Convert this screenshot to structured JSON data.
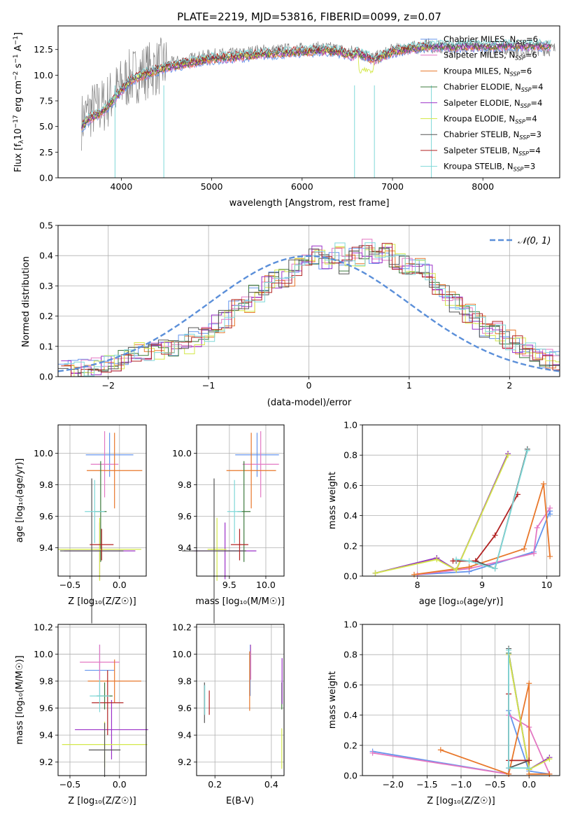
{
  "colors": {
    "Chabrier MILES": "#6495ed",
    "Salpeter MILES": "#e377c2",
    "Kroupa MILES": "#e8772a",
    "Chabrier ELODIE": "#3d7a3d",
    "Salpeter ELODIE": "#9b30c8",
    "Kroupa ELODIE": "#d4e84a",
    "Chabrier STELIB": "#555555",
    "Salpeter STELIB": "#b22222",
    "Kroupa STELIB": "#7fd8d8",
    "data": "#808080",
    "normal": "#5b8fd9"
  },
  "chart_data": [
    {
      "id": "spectrum",
      "type": "line",
      "title": "PLATE=2219, MJD=53816, FIBERID=0099, z=0.07",
      "xlabel": "wavelength [Angstrom, rest frame]",
      "ylabel_main": "Flux [f",
      "ylabel_sub": "λ",
      "ylabel_mid": "10",
      "ylabel_sup1": "−17",
      "ylabel_rest": " erg cm",
      "ylabel_sup2": "−2",
      "ylabel_s": " s",
      "ylabel_sup3": "−1",
      "ylabel_A": " A",
      "ylabel_sup4": "−1",
      "ylabel_end": "]",
      "xlim": [
        3300,
        8850
      ],
      "ylim": [
        0,
        14.8
      ],
      "xticks": [
        "4000",
        "5000",
        "6000",
        "7000",
        "8000"
      ],
      "xtick_values": [
        4000,
        5000,
        6000,
        7000,
        8000
      ],
      "yticks": [
        "0.0",
        "2.5",
        "5.0",
        "7.5",
        "10.0",
        "12.5"
      ],
      "ytick_values": [
        0,
        2.5,
        5,
        7.5,
        10,
        12.5
      ],
      "legend": [
        {
          "name": "Chabrier MILES",
          "nssp": "6"
        },
        {
          "name": "Salpeter MILES",
          "nssp": "6"
        },
        {
          "name": "Kroupa MILES",
          "nssp": "6"
        },
        {
          "name": "Chabrier ELODIE",
          "nssp": "4"
        },
        {
          "name": "Salpeter ELODIE",
          "nssp": "4"
        },
        {
          "name": "Kroupa ELODIE",
          "nssp": "4"
        },
        {
          "name": "Chabrier STELIB",
          "nssp": "3"
        },
        {
          "name": "Salpeter STELIB",
          "nssp": "4"
        },
        {
          "name": "Kroupa STELIB",
          "nssp": "3"
        }
      ],
      "legend_prefix": "N",
      "legend_sub": "SSP",
      "continuum_model": {
        "x": [
          3560,
          3650,
          3800,
          3950,
          4100,
          4300,
          4500,
          4700,
          5000,
          5300,
          5500,
          5800,
          6000,
          6200,
          6400,
          6500,
          6560,
          6600,
          6800,
          7000,
          7200,
          7400
        ],
        "y": [
          5.0,
          5.8,
          6.5,
          8.0,
          9.5,
          10.2,
          10.8,
          11.1,
          11.6,
          11.8,
          12.0,
          12.2,
          12.3,
          12.4,
          12.3,
          12.1,
          11.9,
          12.2,
          11.5,
          12.3,
          12.6,
          12.8
        ]
      },
      "continuum_data": {
        "x": [
          3560,
          3650,
          3800,
          3950,
          4100,
          4300,
          4500,
          4700,
          5000,
          5300,
          5500,
          5800,
          6000,
          6200,
          6400,
          6500,
          6600,
          6800,
          7000,
          7200,
          7400,
          7600,
          7800,
          8000,
          8200,
          8400,
          8600,
          8800
        ],
        "y": [
          5.5,
          6.5,
          7.0,
          8.5,
          9.8,
          10.5,
          11.0,
          11.4,
          11.9,
          12.0,
          12.3,
          12.4,
          12.5,
          12.6,
          12.5,
          12.2,
          12.3,
          11.6,
          12.4,
          12.6,
          12.9,
          12.5,
          12.8,
          12.6,
          12.7,
          12.4,
          12.6,
          12.5
        ]
      },
      "noise_amp": 1.3
    },
    {
      "id": "residuals",
      "type": "histogram",
      "xlabel": "(data-model)/error",
      "ylabel": "Normed distribution",
      "xlim": [
        -2.5,
        2.5
      ],
      "ylim": [
        0,
        0.5
      ],
      "xticks": [
        "−2",
        "−1",
        "0",
        "1",
        "2"
      ],
      "xtick_values": [
        -2,
        -1,
        0,
        1,
        2
      ],
      "yticks": [
        "0.0",
        "0.1",
        "0.2",
        "0.3",
        "0.4",
        "0.5"
      ],
      "ytick_values": [
        0,
        0.1,
        0.2,
        0.3,
        0.4,
        0.5
      ],
      "bin_width": 0.1,
      "legend_label": "𝒩(0, 1)",
      "base_values": [
        0.02,
        0.02,
        0.03,
        0.03,
        0.04,
        0.05,
        0.06,
        0.08,
        0.08,
        0.09,
        0.09,
        0.1,
        0.11,
        0.13,
        0.14,
        0.17,
        0.19,
        0.22,
        0.24,
        0.28,
        0.3,
        0.32,
        0.33,
        0.36,
        0.37,
        0.4,
        0.38,
        0.41,
        0.37,
        0.4,
        0.42,
        0.4,
        0.41,
        0.38,
        0.37,
        0.36,
        0.34,
        0.3,
        0.27,
        0.24,
        0.21,
        0.19,
        0.16,
        0.15,
        0.12,
        0.1,
        0.09,
        0.08,
        0.06,
        0.05,
        0.04,
        0.03,
        0.03,
        0.02
      ]
    },
    {
      "id": "age-vs-Z",
      "type": "errorbar",
      "xlabel": "Z [log₁₀(Z/Z☉)]",
      "ylabel": "age  [log₁₀(age/yr)]",
      "xlim": [
        -0.62,
        0.27
      ],
      "ylim": [
        9.22,
        10.18
      ],
      "xticks": [
        "−0.5",
        "0.0"
      ],
      "xtick_values": [
        -0.5,
        0.0
      ],
      "yticks": [
        "9.4",
        "9.6",
        "9.8",
        "10.0"
      ],
      "ytick_values": [
        9.4,
        9.6,
        9.8,
        10.0
      ],
      "points": [
        {
          "model": "Chabrier MILES",
          "x": -0.1,
          "xerr": 0.24,
          "y": 9.99,
          "yerr": 0.14
        },
        {
          "model": "Salpeter MILES",
          "x": -0.15,
          "xerr": 0.14,
          "y": 9.93,
          "yerr": 0.21
        },
        {
          "model": "Kroupa MILES",
          "x": -0.05,
          "xerr": 0.28,
          "y": 9.89,
          "yerr": 0.24
        },
        {
          "model": "Chabrier ELODIE",
          "x": -0.19,
          "xerr": 0.06,
          "y": 9.63,
          "yerr": 0.32
        },
        {
          "model": "Salpeter ELODIE",
          "x": -0.2,
          "xerr": 0.36,
          "y": 9.38,
          "yerr": 0.18
        },
        {
          "model": "Kroupa ELODIE",
          "x": -0.2,
          "xerr": 0.42,
          "y": 9.39,
          "yerr": 0.2
        },
        {
          "model": "Chabrier STELIB",
          "x": -0.28,
          "xerr": 0.32,
          "y": 9.38,
          "yerr": 0.46
        },
        {
          "model": "Salpeter STELIB",
          "x": -0.18,
          "xerr": 0.12,
          "y": 9.42,
          "yerr": 0.1
        },
        {
          "model": "Kroupa STELIB",
          "x": -0.25,
          "xerr": 0.1,
          "y": 9.63,
          "yerr": 0.2
        }
      ]
    },
    {
      "id": "age-vs-mass",
      "type": "errorbar",
      "xlabel": "mass [log₁₀(M/M☉)]",
      "ylabel": "",
      "xlim": [
        9.05,
        10.25
      ],
      "ylim": [
        9.22,
        10.18
      ],
      "xticks": [
        "9.5",
        "10.0"
      ],
      "xtick_values": [
        9.5,
        10.0
      ],
      "yticks": [
        "9.4",
        "9.6",
        "9.8",
        "10.0"
      ],
      "ytick_values": [
        9.4,
        9.6,
        9.8,
        10.0
      ],
      "points": [
        {
          "model": "Chabrier MILES",
          "x": 9.88,
          "xerr": 0.3,
          "y": 9.99,
          "yerr": 0.14
        },
        {
          "model": "Salpeter MILES",
          "x": 9.93,
          "xerr": 0.25,
          "y": 9.93,
          "yerr": 0.21
        },
        {
          "model": "Kroupa MILES",
          "x": 9.8,
          "xerr": 0.34,
          "y": 9.89,
          "yerr": 0.24
        },
        {
          "model": "Chabrier ELODIE",
          "x": 9.7,
          "xerr": 0.09,
          "y": 9.63,
          "yerr": 0.32
        },
        {
          "model": "Salpeter ELODIE",
          "x": 9.44,
          "xerr": 0.43,
          "y": 9.38,
          "yerr": 0.18
        },
        {
          "model": "Kroupa ELODIE",
          "x": 9.33,
          "xerr": 0.13,
          "y": 9.39,
          "yerr": 0.2
        },
        {
          "model": "Chabrier STELIB",
          "x": 9.29,
          "xerr": 0.44,
          "y": 9.38,
          "yerr": 0.46
        },
        {
          "model": "Salpeter STELIB",
          "x": 9.64,
          "xerr": 0.12,
          "y": 9.42,
          "yerr": 0.1
        },
        {
          "model": "Kroupa STELIB",
          "x": 9.57,
          "xerr": 0.1,
          "y": 9.63,
          "yerr": 0.2
        }
      ]
    },
    {
      "id": "weight-vs-age",
      "type": "line",
      "xlabel": "age  [log₁₀(age/yr)]",
      "ylabel": "mass weight",
      "xlim": [
        7.15,
        10.2
      ],
      "ylim": [
        0,
        1.0
      ],
      "xticks": [
        "8",
        "9",
        "10"
      ],
      "xtick_values": [
        8,
        9,
        10
      ],
      "yticks": [
        "0.0",
        "0.2",
        "0.4",
        "0.6",
        "0.8",
        "1.0"
      ],
      "ytick_values": [
        0,
        0.2,
        0.4,
        0.6,
        0.8,
        1.0
      ],
      "series": [
        {
          "model": "Chabrier MILES",
          "x": [
            8.0,
            8.8,
            9.8,
            10.05,
            10.05
          ],
          "y": [
            0.01,
            0.03,
            0.16,
            0.43,
            0.41
          ]
        },
        {
          "model": "Salpeter MILES",
          "x": [
            8.0,
            8.8,
            9.8,
            9.85,
            10.05
          ],
          "y": [
            0.01,
            0.05,
            0.15,
            0.32,
            0.45
          ]
        },
        {
          "model": "Kroupa MILES",
          "x": [
            7.95,
            8.8,
            9.65,
            9.95,
            10.05
          ],
          "y": [
            0.01,
            0.06,
            0.18,
            0.61,
            0.13
          ]
        },
        {
          "model": "Chabrier ELODIE",
          "x": [
            7.35,
            8.3,
            8.6,
            9.4
          ],
          "y": [
            0.02,
            0.12,
            0.04,
            0.81
          ]
        },
        {
          "model": "Salpeter ELODIE",
          "x": [
            7.35,
            8.3,
            8.6,
            9.4
          ],
          "y": [
            0.02,
            0.12,
            0.04,
            0.81
          ]
        },
        {
          "model": "Kroupa ELODIE",
          "x": [
            7.35,
            8.3,
            8.6,
            9.4
          ],
          "y": [
            0.02,
            0.11,
            0.04,
            0.8
          ]
        },
        {
          "model": "Chabrier STELIB",
          "x": [
            8.6,
            8.9,
            9.2,
            9.7
          ],
          "y": [
            0.1,
            0.1,
            0.05,
            0.84
          ]
        },
        {
          "model": "Salpeter STELIB",
          "x": [
            8.55,
            8.9,
            9.2,
            9.55
          ],
          "y": [
            0.1,
            0.1,
            0.27,
            0.54
          ]
        },
        {
          "model": "Kroupa STELIB",
          "x": [
            8.6,
            8.8,
            9.2,
            9.7
          ],
          "y": [
            0.11,
            0.1,
            0.05,
            0.83
          ]
        }
      ]
    },
    {
      "id": "mass-vs-Z",
      "type": "errorbar",
      "xlabel": "Z [log₁₀(Z/Z☉)]",
      "ylabel": "mass [log₁₀(M/M☉)]",
      "xlim": [
        -0.62,
        0.27
      ],
      "ylim": [
        9.1,
        10.22
      ],
      "xticks": [
        "−0.5",
        "0.0"
      ],
      "xtick_values": [
        -0.5,
        0.0
      ],
      "yticks": [
        "9.2",
        "9.4",
        "9.6",
        "9.8",
        "10.0",
        "10.2"
      ],
      "ytick_values": [
        9.2,
        9.4,
        9.6,
        9.8,
        10.0,
        10.2
      ],
      "points": [
        {
          "model": "Chabrier MILES",
          "x": -0.2,
          "xerr": 0.15,
          "y": 9.88,
          "yerr": 0.19
        },
        {
          "model": "Salpeter MILES",
          "x": -0.2,
          "xerr": 0.2,
          "y": 9.94,
          "yerr": 0.13
        },
        {
          "model": "Kroupa MILES",
          "x": -0.05,
          "xerr": 0.27,
          "y": 9.8,
          "yerr": 0.16
        },
        {
          "model": "Chabrier ELODIE",
          "x": -0.15,
          "xerr": 0.08,
          "y": 9.69,
          "yerr": 0.1
        },
        {
          "model": "Salpeter ELODIE",
          "x": -0.08,
          "xerr": 0.37,
          "y": 9.44,
          "yerr": 0.22
        },
        {
          "model": "Kroupa ELODIE",
          "x": -0.15,
          "xerr": 0.43,
          "y": 9.33,
          "yerr": 0.17
        },
        {
          "model": "Chabrier STELIB",
          "x": -0.15,
          "xerr": 0.16,
          "y": 9.29,
          "yerr": 0.2
        },
        {
          "model": "Salpeter STELIB",
          "x": -0.12,
          "xerr": 0.16,
          "y": 9.64,
          "yerr": 0.24
        },
        {
          "model": "Kroupa STELIB",
          "x": -0.2,
          "xerr": 0.1,
          "y": 9.69,
          "yerr": 0.12
        }
      ]
    },
    {
      "id": "mass-vs-ebv",
      "type": "errorbar",
      "xlabel": "E(B-V)",
      "ylabel": "",
      "xlim": [
        0.135,
        0.445
      ],
      "ylim": [
        9.1,
        10.22
      ],
      "xticks": [
        "0.2",
        "0.4"
      ],
      "xtick_values": [
        0.2,
        0.4
      ],
      "yticks": [
        "9.2",
        "9.4",
        "9.6",
        "9.8",
        "10.0",
        "10.2"
      ],
      "ytick_values": [
        9.2,
        9.4,
        9.6,
        9.8,
        10.0,
        10.2
      ],
      "points": [
        {
          "model": "Chabrier MILES",
          "x": 0.325,
          "xerr": 0,
          "y": 9.88,
          "yerr": 0.19
        },
        {
          "model": "Salpeter MILES",
          "x": 0.327,
          "xerr": 0,
          "y": 9.94,
          "yerr": 0.13
        },
        {
          "model": "Kroupa MILES",
          "x": 0.323,
          "xerr": 0,
          "y": 9.8,
          "yerr": 0.22
        },
        {
          "model": "Chabrier ELODIE",
          "x": 0.437,
          "xerr": 0,
          "y": 9.69,
          "yerr": 0.1
        },
        {
          "model": "Salpeter ELODIE",
          "x": 0.438,
          "xerr": 0,
          "y": 9.8,
          "yerr": 0.17
        },
        {
          "model": "Kroupa ELODIE",
          "x": 0.437,
          "xerr": 0,
          "y": 9.3,
          "yerr": 0.15
        },
        {
          "model": "Chabrier STELIB",
          "x": 0.163,
          "xerr": 0,
          "y": 9.64,
          "yerr": 0.15
        },
        {
          "model": "Salpeter STELIB",
          "x": 0.18,
          "xerr": 0,
          "y": 9.64,
          "yerr": 0.09
        },
        {
          "model": "Kroupa STELIB",
          "x": 0.164,
          "xerr": 0,
          "y": 9.66,
          "yerr": 0.11
        }
      ]
    },
    {
      "id": "weight-vs-Z",
      "type": "line",
      "xlabel": "Z [log₁₀(Z/Z☉)]",
      "ylabel": "mass weight",
      "xlim": [
        -2.45,
        0.45
      ],
      "ylim": [
        0,
        1.0
      ],
      "xticks": [
        "−2.0",
        "−1.5",
        "−1.0",
        "−0.5",
        "0.0"
      ],
      "xtick_values": [
        -2.0,
        -1.5,
        -1.0,
        -0.5,
        0.0
      ],
      "yticks": [
        "0.0",
        "0.2",
        "0.4",
        "0.6",
        "0.8",
        "1.0"
      ],
      "ytick_values": [
        0,
        0.2,
        0.4,
        0.6,
        0.8,
        1.0
      ],
      "series": [
        {
          "model": "Chabrier MILES",
          "x": [
            -2.3,
            -0.3,
            -0.3,
            0.0,
            0.3
          ],
          "y": [
            0.16,
            0.01,
            0.43,
            0.03,
            0.01
          ]
        },
        {
          "model": "Salpeter MILES",
          "x": [
            -2.3,
            -0.3,
            -0.3,
            0.0,
            0.3
          ],
          "y": [
            0.15,
            0.01,
            0.4,
            0.32,
            0.01
          ]
        },
        {
          "model": "Kroupa MILES",
          "x": [
            -1.3,
            -0.3,
            0.0,
            0.0,
            0.3
          ],
          "y": [
            0.17,
            0.01,
            0.61,
            0.01,
            0.01
          ]
        },
        {
          "model": "Chabrier ELODIE",
          "x": [
            -0.3,
            0.0,
            0.3
          ],
          "y": [
            0.81,
            0.04,
            0.12
          ]
        },
        {
          "model": "Salpeter ELODIE",
          "x": [
            -0.3,
            0.0,
            0.3
          ],
          "y": [
            0.8,
            0.04,
            0.12
          ]
        },
        {
          "model": "Kroupa ELODIE",
          "x": [
            -0.3,
            0.0,
            0.3
          ],
          "y": [
            0.8,
            0.04,
            0.11
          ]
        },
        {
          "model": "Chabrier STELIB",
          "x": [
            -0.3,
            -0.3,
            0.0
          ],
          "y": [
            0.84,
            0.05,
            0.1
          ]
        },
        {
          "model": "Salpeter STELIB",
          "x": [
            -0.3,
            -0.3,
            0.0
          ],
          "y": [
            0.54,
            0.1,
            0.1
          ]
        },
        {
          "model": "Kroupa STELIB",
          "x": [
            -0.3,
            -0.3,
            0.0
          ],
          "y": [
            0.83,
            0.05,
            0.05
          ]
        }
      ]
    }
  ]
}
